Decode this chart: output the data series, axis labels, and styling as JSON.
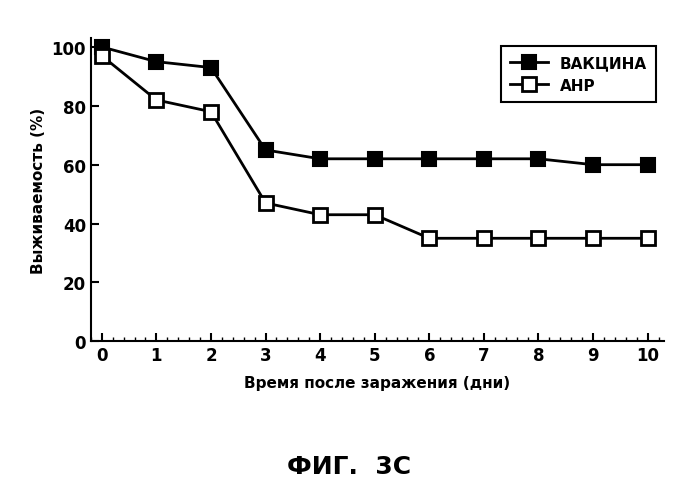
{
  "vaccine_x": [
    0,
    1,
    2,
    3,
    4,
    5,
    6,
    7,
    8,
    9,
    10
  ],
  "vaccine_y": [
    100,
    95,
    93,
    65,
    62,
    62,
    62,
    62,
    62,
    60,
    60
  ],
  "anr_x": [
    0,
    1,
    2,
    3,
    4,
    5,
    6,
    7,
    8,
    9,
    10
  ],
  "anr_y": [
    97,
    82,
    78,
    47,
    43,
    43,
    35,
    35,
    35,
    35,
    35
  ],
  "xlabel": "Время после заражения (дни)",
  "ylabel": "Выживаемость (%)",
  "fig_title": "ФИГ.  3С",
  "legend_vaccine": "ВАКЦИНА",
  "legend_anr": "АНР",
  "xlim": [
    -0.2,
    10.3
  ],
  "ylim": [
    0,
    103
  ],
  "yticks": [
    0,
    20,
    40,
    60,
    80,
    100
  ],
  "xticks": [
    0,
    1,
    2,
    3,
    4,
    5,
    6,
    7,
    8,
    9,
    10
  ],
  "background_color": "#ffffff",
  "line_color": "#000000",
  "marker_size": 10,
  "linewidth": 2.0
}
